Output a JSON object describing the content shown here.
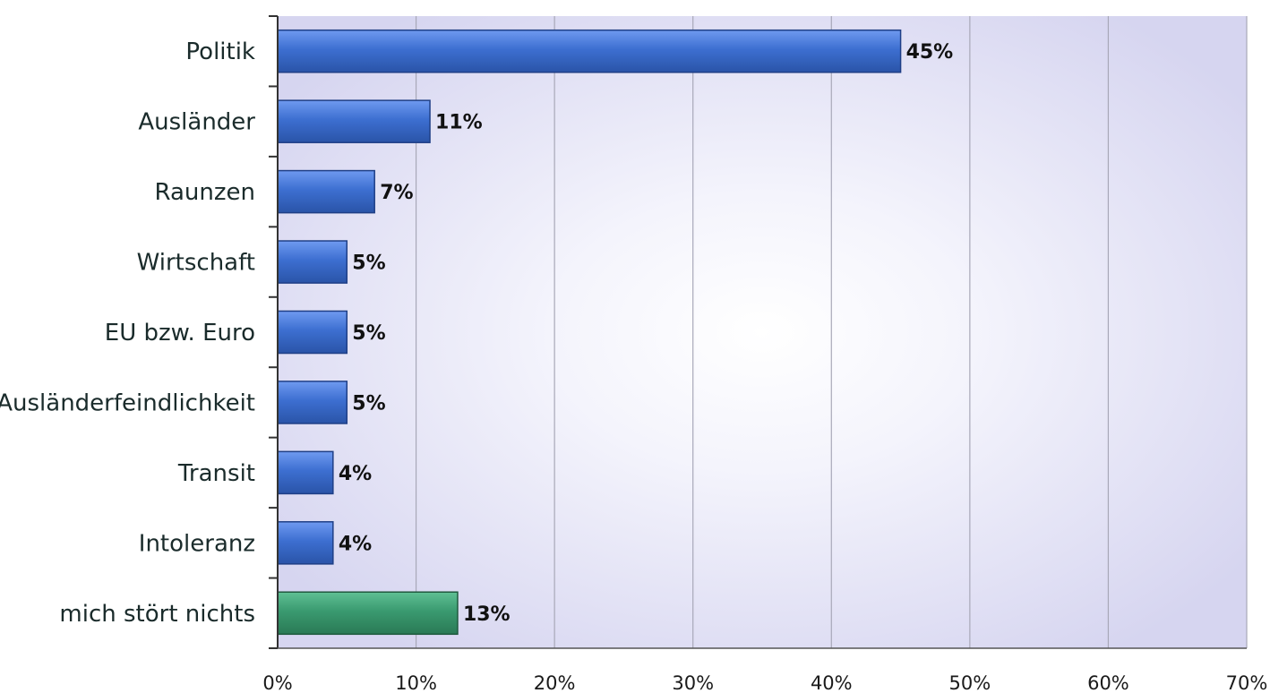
{
  "chart_data": {
    "type": "bar",
    "orientation": "horizontal",
    "categories": [
      "Politik",
      "Ausländer",
      "Raunzen",
      "Wirtschaft",
      "EU bzw. Euro",
      "Ausländerfeindlichkeit",
      "Transit",
      "Intoleranz",
      "mich stört nichts"
    ],
    "values": [
      45,
      11,
      7,
      5,
      5,
      5,
      4,
      4,
      13
    ],
    "value_labels": [
      "45%",
      "11%",
      "7%",
      "5%",
      "5%",
      "5%",
      "4%",
      "4%",
      "13%"
    ],
    "x_ticks": [
      "0%",
      "10%",
      "20%",
      "30%",
      "40%",
      "50%",
      "60%",
      "70%"
    ],
    "xlim": [
      0,
      70
    ],
    "title": "",
    "xlabel": "",
    "ylabel": "",
    "grid": "vertical",
    "legend": "none",
    "colors": {
      "bar": "#3d6fd1",
      "bar_dark": "#1f3f86",
      "bar_highlight": "#3a9a70",
      "bar_highlight_dark": "#1f5a3e",
      "plot_bg_edge": "#d9d9f2",
      "plot_bg_center": "#ffffff",
      "gridline": "#a8a8b8"
    }
  }
}
